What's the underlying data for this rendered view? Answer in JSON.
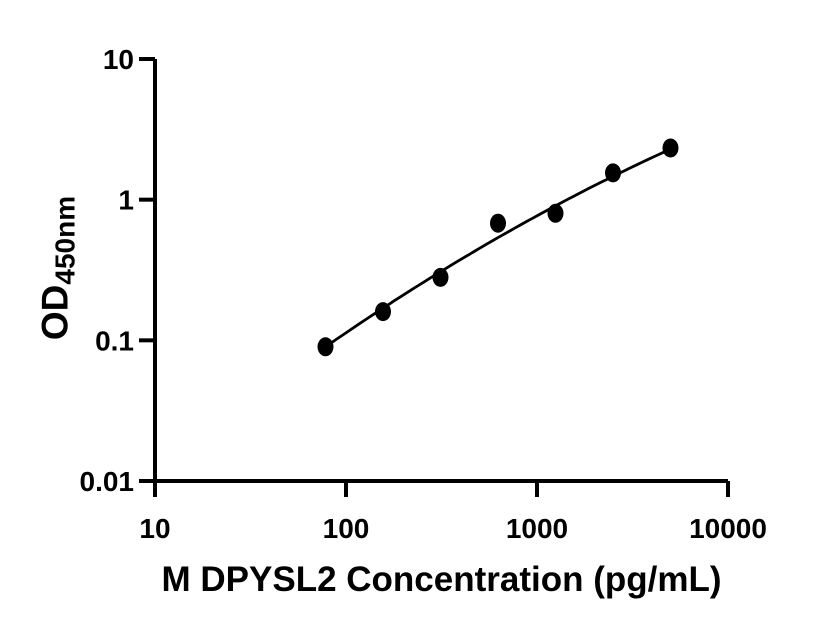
{
  "figure": {
    "background_color": "#ffffff",
    "ink_color": "#000000"
  },
  "chart_data": {
    "type": "scatter",
    "title": "",
    "xlabel": "M DPYSL2 Concentration (pg/mL)",
    "ylabel_main": "OD",
    "ylabel_sub": "450nm",
    "x_scale": "log",
    "y_scale": "log",
    "xlim": [
      10,
      10000
    ],
    "ylim": [
      0.01,
      10
    ],
    "x_ticks": [
      10,
      100,
      1000,
      10000
    ],
    "x_tick_labels": [
      "10",
      "100",
      "1000",
      "10000"
    ],
    "y_ticks": [
      10,
      1,
      0.1,
      0.01
    ],
    "y_tick_labels": [
      "10",
      "1",
      "0.1",
      "0.01"
    ],
    "grid": false,
    "legend": null,
    "marker": {
      "shape": "filled-circle",
      "color": "#000000",
      "rx": 8,
      "ry": 9.5
    },
    "points": [
      {
        "x": 78.125,
        "y": 0.09
      },
      {
        "x": 156.25,
        "y": 0.16
      },
      {
        "x": 312.5,
        "y": 0.28
      },
      {
        "x": 625,
        "y": 0.68
      },
      {
        "x": 1250,
        "y": 0.8
      },
      {
        "x": 2500,
        "y": 1.55
      },
      {
        "x": 5000,
        "y": 2.33
      }
    ],
    "trend_fit": {
      "type": "quadratic-loglog",
      "description": "log10(OD) = a + b*u + c*u^2 where u = log10(concentration)",
      "a": -3.151,
      "b": 1.283,
      "c": -0.0903,
      "x_start": 78.125,
      "x_end": 5000,
      "line_color": "#000000",
      "line_width": 2.8
    }
  }
}
